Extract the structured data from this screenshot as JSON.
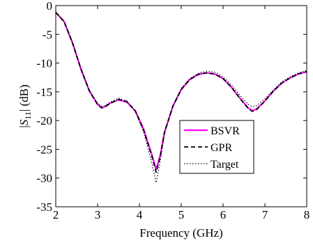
{
  "chart_data": {
    "type": "line",
    "title": "",
    "xlabel": "Frequency (GHz)",
    "ylabel": {
      "pre": "|",
      "var": "S",
      "sub": "11",
      "post": "| (dB)"
    },
    "xlim": [
      2,
      8
    ],
    "ylim": [
      -35,
      0
    ],
    "xticks": [
      2,
      3,
      4,
      5,
      6,
      7,
      8
    ],
    "yticks": [
      0,
      -5,
      -10,
      -15,
      -20,
      -25,
      -30,
      -35
    ],
    "grid": false,
    "legend_position": "lower-right",
    "series": [
      {
        "name": "BSVR",
        "color": "#ff00ff",
        "style": "solid",
        "points": [
          [
            2.0,
            -1.2
          ],
          [
            2.2,
            -2.8
          ],
          [
            2.4,
            -6.5
          ],
          [
            2.6,
            -11.0
          ],
          [
            2.8,
            -14.8
          ],
          [
            3.0,
            -17.2
          ],
          [
            3.1,
            -17.8
          ],
          [
            3.2,
            -17.5
          ],
          [
            3.3,
            -17.0
          ],
          [
            3.5,
            -16.4
          ],
          [
            3.7,
            -16.8
          ],
          [
            3.9,
            -18.3
          ],
          [
            4.1,
            -21.5
          ],
          [
            4.3,
            -26.0
          ],
          [
            4.4,
            -28.5
          ],
          [
            4.5,
            -26.0
          ],
          [
            4.6,
            -22.0
          ],
          [
            4.8,
            -17.5
          ],
          [
            5.0,
            -14.6
          ],
          [
            5.2,
            -12.9
          ],
          [
            5.4,
            -12.0
          ],
          [
            5.6,
            -11.7
          ],
          [
            5.8,
            -11.9
          ],
          [
            6.0,
            -12.7
          ],
          [
            6.2,
            -14.2
          ],
          [
            6.4,
            -16.1
          ],
          [
            6.6,
            -17.8
          ],
          [
            6.7,
            -18.3
          ],
          [
            6.8,
            -18.0
          ],
          [
            7.0,
            -16.6
          ],
          [
            7.2,
            -14.9
          ],
          [
            7.4,
            -13.5
          ],
          [
            7.6,
            -12.6
          ],
          [
            7.8,
            -11.9
          ],
          [
            8.0,
            -11.5
          ]
        ]
      },
      {
        "name": "GPR",
        "color": "#000000",
        "style": "dashed",
        "points": [
          [
            2.0,
            -1.2
          ],
          [
            2.2,
            -2.8
          ],
          [
            2.4,
            -6.5
          ],
          [
            2.6,
            -11.0
          ],
          [
            2.8,
            -14.8
          ],
          [
            3.0,
            -17.2
          ],
          [
            3.1,
            -17.8
          ],
          [
            3.2,
            -17.5
          ],
          [
            3.3,
            -17.0
          ],
          [
            3.5,
            -16.3
          ],
          [
            3.7,
            -16.7
          ],
          [
            3.9,
            -18.3
          ],
          [
            4.1,
            -21.6
          ],
          [
            4.3,
            -26.3
          ],
          [
            4.4,
            -29.0
          ],
          [
            4.5,
            -26.2
          ],
          [
            4.6,
            -22.1
          ],
          [
            4.8,
            -17.5
          ],
          [
            5.0,
            -14.6
          ],
          [
            5.2,
            -12.9
          ],
          [
            5.4,
            -12.0
          ],
          [
            5.6,
            -11.7
          ],
          [
            5.8,
            -11.9
          ],
          [
            6.0,
            -12.7
          ],
          [
            6.2,
            -14.2
          ],
          [
            6.4,
            -16.1
          ],
          [
            6.6,
            -17.9
          ],
          [
            6.7,
            -18.4
          ],
          [
            6.8,
            -18.1
          ],
          [
            7.0,
            -16.6
          ],
          [
            7.2,
            -14.9
          ],
          [
            7.4,
            -13.5
          ],
          [
            7.6,
            -12.6
          ],
          [
            7.8,
            -11.9
          ],
          [
            8.0,
            -11.5
          ]
        ]
      },
      {
        "name": "Target",
        "color": "#000000",
        "style": "dotted",
        "points": [
          [
            2.0,
            -1.1
          ],
          [
            2.2,
            -2.7
          ],
          [
            2.4,
            -6.4
          ],
          [
            2.6,
            -10.9
          ],
          [
            2.8,
            -14.7
          ],
          [
            3.0,
            -17.0
          ],
          [
            3.1,
            -17.5
          ],
          [
            3.2,
            -17.3
          ],
          [
            3.3,
            -16.8
          ],
          [
            3.5,
            -16.1
          ],
          [
            3.7,
            -16.6
          ],
          [
            3.9,
            -18.4
          ],
          [
            4.1,
            -22.0
          ],
          [
            4.3,
            -27.5
          ],
          [
            4.4,
            -30.8
          ],
          [
            4.5,
            -27.0
          ],
          [
            4.6,
            -22.3
          ],
          [
            4.8,
            -17.4
          ],
          [
            5.0,
            -14.4
          ],
          [
            5.2,
            -12.7
          ],
          [
            5.4,
            -11.8
          ],
          [
            5.6,
            -11.4
          ],
          [
            5.8,
            -11.6
          ],
          [
            6.0,
            -12.4
          ],
          [
            6.2,
            -13.8
          ],
          [
            6.4,
            -15.6
          ],
          [
            6.6,
            -17.2
          ],
          [
            6.7,
            -17.6
          ],
          [
            6.8,
            -17.4
          ],
          [
            7.0,
            -16.2
          ],
          [
            7.2,
            -14.7
          ],
          [
            7.4,
            -13.3
          ],
          [
            7.6,
            -12.4
          ],
          [
            7.8,
            -11.7
          ],
          [
            8.0,
            -11.3
          ]
        ]
      }
    ]
  }
}
